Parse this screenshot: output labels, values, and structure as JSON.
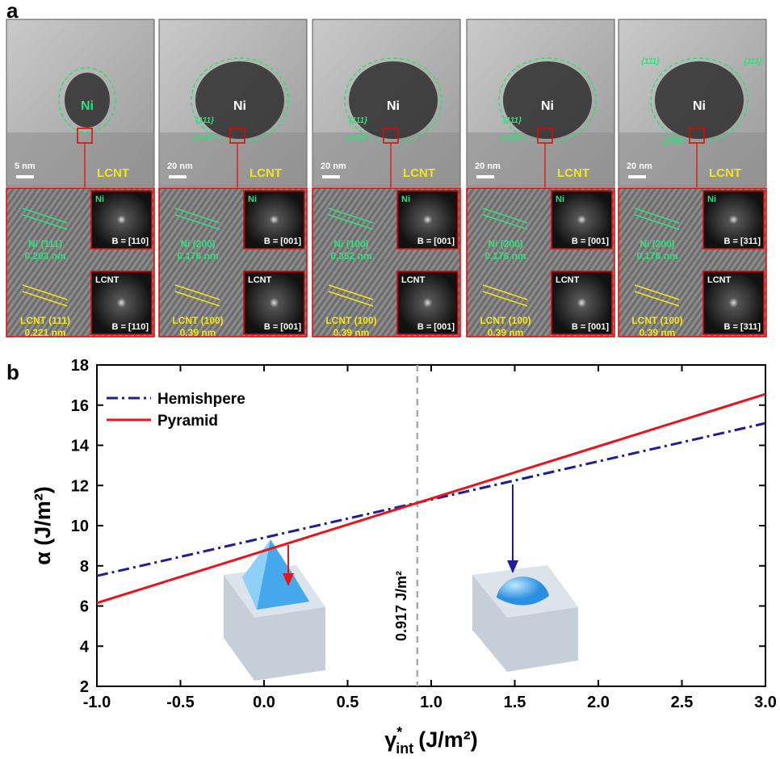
{
  "panel_a": {
    "label": "a",
    "images": [
      {
        "scale": "5 nm",
        "particle": "Ni",
        "substrate": "LCNT",
        "facets": [],
        "lattice": [
          {
            "plane": "Ni (111)",
            "spacing": "0.203 nm"
          },
          {
            "plane": "LCNT (111)",
            "spacing": "0.221 nm"
          }
        ],
        "fft": [
          {
            "phase": "Ni",
            "zone": "B = [110]"
          },
          {
            "phase": "LCNT",
            "zone": "B = [110]"
          }
        ]
      },
      {
        "scale": "20 nm",
        "particle": "Ni",
        "substrate": "LCNT",
        "facets": [
          "{111}",
          "{100}"
        ],
        "lattice": [
          {
            "plane": "Ni (200)",
            "spacing": "0.176 nm"
          },
          {
            "plane": "LCNT (100)",
            "spacing": "0.39 nm"
          }
        ],
        "fft": [
          {
            "phase": "Ni",
            "zone": "B = [001]"
          },
          {
            "phase": "LCNT",
            "zone": "B = [001]"
          }
        ]
      },
      {
        "scale": "20 nm",
        "particle": "Ni",
        "substrate": "LCNT",
        "facets": [
          "{111}",
          "{100}"
        ],
        "lattice": [
          {
            "plane": "Ni (100)",
            "spacing": "0.352 nm"
          },
          {
            "plane": "LCNT (100)",
            "spacing": "0.39 nm"
          }
        ],
        "fft": [
          {
            "phase": "Ni",
            "zone": "B = [001]"
          },
          {
            "phase": "LCNT",
            "zone": "B = [001]"
          }
        ]
      },
      {
        "scale": "20 nm",
        "particle": "Ni",
        "substrate": "LCNT",
        "facets": [
          "{111}",
          "{100}"
        ],
        "lattice": [
          {
            "plane": "Ni (200)",
            "spacing": "0.176 nm"
          },
          {
            "plane": "LCNT (100)",
            "spacing": "0.39 nm"
          }
        ],
        "fft": [
          {
            "phase": "Ni",
            "zone": "B = [001]"
          },
          {
            "phase": "LCNT",
            "zone": "B = [001]"
          }
        ]
      },
      {
        "scale": "20 nm",
        "particle": "Ni",
        "substrate": "LCNT",
        "facets": [
          "{111}",
          "{111}",
          "{100}"
        ],
        "lattice": [
          {
            "plane": "Ni (200)",
            "spacing": "0.176 nm"
          },
          {
            "plane": "LCNT (100)",
            "spacing": "0.39 nm"
          }
        ],
        "fft": [
          {
            "phase": "Ni",
            "zone": "B = [311]"
          },
          {
            "phase": "LCNT",
            "zone": "B = [311]"
          }
        ]
      }
    ]
  },
  "chart_data": {
    "type": "line",
    "panel_label": "b",
    "xlabel": {
      "symbol": "γ",
      "superscript": "*",
      "subscript": "int",
      "unit": "(J/m²)"
    },
    "ylabel": "α (J/m²)",
    "x": [
      -1.0,
      3.0
    ],
    "series": [
      {
        "name": "Hemishpere",
        "color": "#1c1c9c",
        "style": "dash-dot",
        "values": [
          7.5,
          15.1
        ]
      },
      {
        "name": "Pyramid",
        "color": "#e8141c",
        "style": "solid",
        "values": [
          6.15,
          16.55
        ]
      }
    ],
    "xlim": [
      -1.0,
      3.0
    ],
    "ylim": [
      2,
      18
    ],
    "xticks": [
      {
        "value": -1.0,
        "label": "-1.0"
      },
      -0.5,
      {
        "value": 0.0,
        "label": "0.0"
      },
      0.5,
      {
        "value": 1.0,
        "label": "1.0"
      },
      1.5,
      {
        "value": 2.0,
        "label": "2.0"
      },
      2.5,
      {
        "value": 3.0,
        "label": "3.0"
      }
    ],
    "yticks": [
      2,
      4,
      6,
      8,
      10,
      12,
      14,
      16,
      18
    ],
    "vline": {
      "x": 0.917,
      "label": "0.917 J/m²"
    },
    "legend": "upper-left"
  }
}
